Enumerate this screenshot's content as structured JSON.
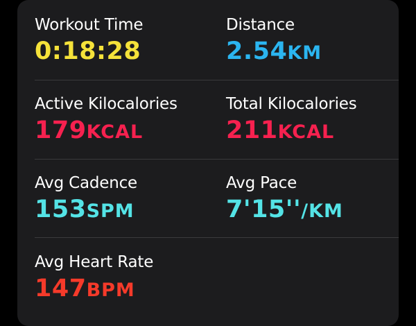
{
  "metrics": [
    {
      "label": "Workout Time",
      "value": "0:18:28",
      "unit": "",
      "color": "#f5e23a"
    },
    {
      "label": "Distance",
      "value": "2.54",
      "unit": "KM",
      "color": "#2bb5f0"
    },
    {
      "label": "Active Kilocalories",
      "value": "179",
      "unit": "KCAL",
      "color": "#f6214f"
    },
    {
      "label": "Total Kilocalories",
      "value": "211",
      "unit": "KCAL",
      "color": "#f6214f"
    },
    {
      "label": "Avg Cadence",
      "value": "153",
      "unit": "SPM",
      "color": "#54e3e6"
    },
    {
      "label": "Avg Pace",
      "value": "7'15''",
      "unit": "/KM",
      "color": "#54e3e6"
    },
    {
      "label": "Avg Heart Rate",
      "value": "147",
      "unit": "BPM",
      "color": "#f53a2a"
    }
  ]
}
